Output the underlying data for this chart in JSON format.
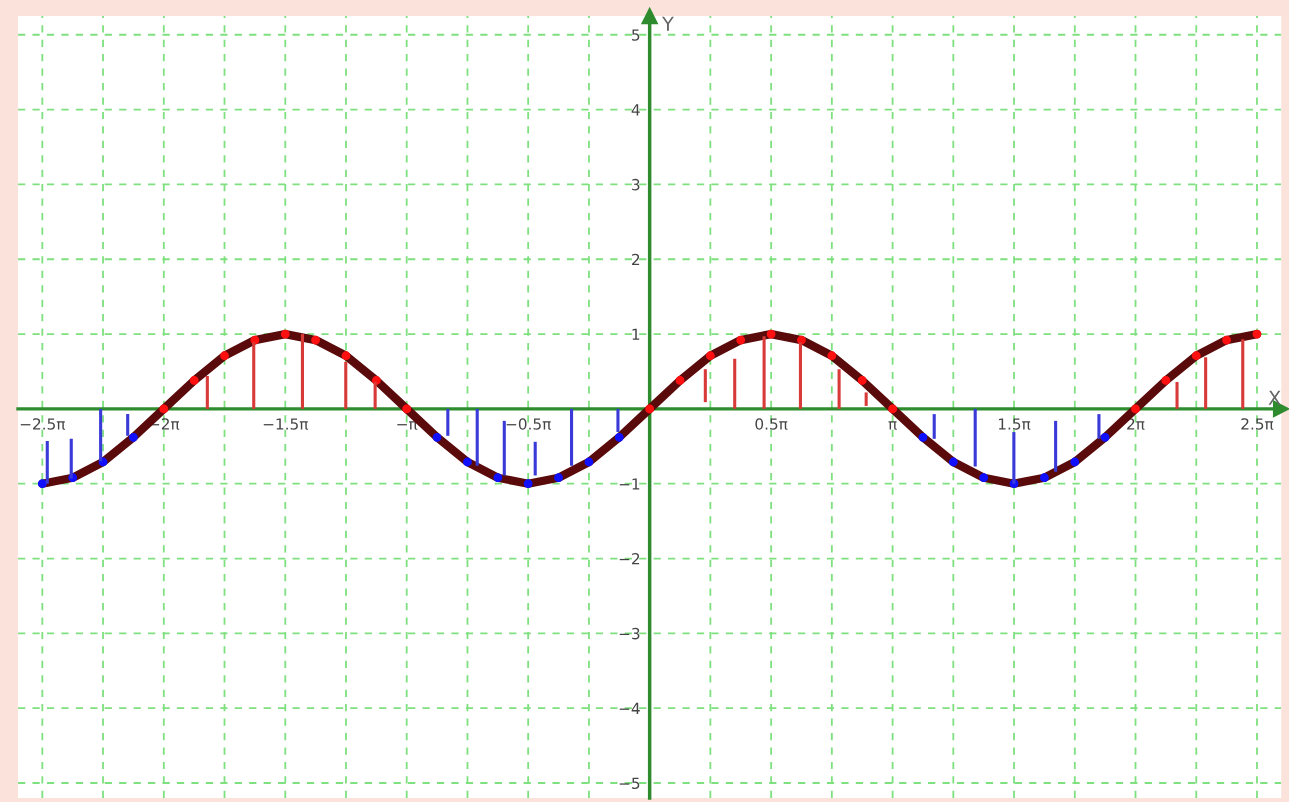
{
  "chart_data": {
    "type": "line",
    "xlabel": "X",
    "ylabel": "Y",
    "xlim": [
      -8.168,
      8.168
    ],
    "ylim": [
      -5.2,
      5.25
    ],
    "xticks": [
      {
        "value": -7.854,
        "label": "−2.5π"
      },
      {
        "value": -7.069,
        "label": null
      },
      {
        "value": -6.283,
        "label": "−2π"
      },
      {
        "value": -5.498,
        "label": null
      },
      {
        "value": -4.712,
        "label": "−1.5π"
      },
      {
        "value": -3.927,
        "label": null
      },
      {
        "value": -3.142,
        "label": "−π"
      },
      {
        "value": -2.356,
        "label": null
      },
      {
        "value": -1.571,
        "label": "−0.5π"
      },
      {
        "value": -0.785,
        "label": null
      },
      {
        "value": 0.785,
        "label": null
      },
      {
        "value": 1.571,
        "label": "0.5π"
      },
      {
        "value": 2.356,
        "label": null
      },
      {
        "value": 3.142,
        "label": "π"
      },
      {
        "value": 3.927,
        "label": null
      },
      {
        "value": 4.712,
        "label": "1.5π"
      },
      {
        "value": 5.498,
        "label": null
      },
      {
        "value": 6.283,
        "label": "2π"
      },
      {
        "value": 7.069,
        "label": null
      },
      {
        "value": 7.854,
        "label": "2.5π"
      }
    ],
    "yticks": [
      {
        "value": -5,
        "label": "−5"
      },
      {
        "value": -4,
        "label": "−4"
      },
      {
        "value": -3,
        "label": "−3"
      },
      {
        "value": -2,
        "label": "−2"
      },
      {
        "value": -1,
        "label": "−1"
      },
      {
        "value": 0,
        "label": null
      },
      1,
      2,
      3,
      4,
      5
    ],
    "grid": true,
    "series": [
      {
        "type": "bar",
        "x": [
          -7.79,
          -7.48,
          -7.1,
          -6.75,
          -5.72,
          -5.12,
          -4.49,
          -3.93,
          -3.55,
          -2.61,
          -2.23,
          -1.88,
          -1.48,
          -1.01,
          -0.41,
          0.72,
          1.1,
          1.48,
          1.95,
          2.45,
          2.8,
          3.68,
          4.21,
          4.71,
          5.25,
          5.81,
          6.82,
          7.19,
          7.67
        ],
        "base": [
          -0.43,
          -0.4,
          0,
          -0.07,
          0,
          0,
          0,
          0,
          0,
          0,
          0,
          -0.16,
          -0.44,
          0,
          0,
          0.09,
          0,
          0,
          0,
          0,
          0.04,
          -0.07,
          0,
          -0.31,
          -0.16,
          -0.07,
          0,
          0,
          0
        ],
        "values": [
          -0.57,
          -0.53,
          -0.7,
          -0.29,
          0.44,
          0.89,
          1.0,
          0.63,
          0.36,
          -0.36,
          -0.76,
          -0.73,
          -0.45,
          -0.76,
          -0.31,
          0.44,
          0.67,
          0.97,
          0.89,
          0.53,
          0.18,
          -0.33,
          -0.77,
          -0.69,
          -0.68,
          -0.33,
          0.36,
          0.69,
          0.93
        ],
        "colors": [
          "#3a3ad8",
          "#3a3ad8",
          "#3a3ad8",
          "#3a3ad8",
          "#d83a3a",
          "#d83a3a",
          "#d83a3a",
          "#d83a3a",
          "#d83a3a",
          "#3a3ad8",
          "#3a3ad8",
          "#3a3ad8",
          "#3a3ad8",
          "#3a3ad8",
          "#3a3ad8",
          "#d83a3a",
          "#d83a3a",
          "#d83a3a",
          "#d83a3a",
          "#d83a3a",
          "#d83a3a",
          "#3a3ad8",
          "#3a3ad8",
          "#3a3ad8",
          "#3a3ad8",
          "#3a3ad8",
          "#d83a3a",
          "#d83a3a",
          "#d83a3a"
        ]
      },
      {
        "type": "line",
        "color": "#5a0a0a",
        "marker": "none",
        "line_style": "solid",
        "x": [
          -7.854,
          -7.461,
          -7.069,
          -6.676,
          -6.283,
          -5.89,
          -5.498,
          -5.105,
          -4.712,
          -4.32,
          -3.927,
          -3.534,
          -3.142,
          -2.749,
          -2.356,
          -1.963,
          -1.571,
          -1.178,
          -0.785,
          -0.393,
          0,
          0.393,
          0.785,
          1.178,
          1.571,
          1.963,
          2.356,
          2.749,
          3.142,
          3.534,
          3.927,
          4.32,
          4.712,
          5.105,
          5.498,
          5.89,
          6.283,
          6.676,
          7.069,
          7.461,
          7.854
        ],
        "values": [
          -1,
          -0.92,
          -0.71,
          -0.38,
          0,
          0.38,
          0.71,
          0.92,
          1,
          0.92,
          0.71,
          0.38,
          0,
          -0.38,
          -0.71,
          -0.92,
          -1,
          -0.92,
          -0.71,
          -0.38,
          0,
          0.38,
          0.71,
          0.92,
          1,
          0.92,
          0.71,
          0.38,
          0,
          -0.38,
          -0.71,
          -0.92,
          -1,
          -0.92,
          -0.71,
          -0.38,
          0,
          0.38,
          0.71,
          0.92,
          1
        ]
      },
      {
        "type": "scatter",
        "color": "#ff1010",
        "marker": "circle",
        "x": [
          -6.283,
          -5.89,
          -5.498,
          -5.105,
          -4.712,
          -4.32,
          -3.927,
          -3.534,
          -3.142,
          0,
          0.393,
          0.785,
          1.178,
          1.571,
          1.963,
          2.356,
          2.749,
          3.142,
          6.283,
          6.676,
          7.069,
          7.461,
          7.854
        ],
        "values": [
          0,
          0.38,
          0.71,
          0.92,
          1,
          0.92,
          0.71,
          0.38,
          0,
          0,
          0.38,
          0.71,
          0.92,
          1,
          0.92,
          0.71,
          0.38,
          0,
          0,
          0.38,
          0.71,
          0.92,
          1
        ]
      },
      {
        "type": "scatter",
        "color": "#1010ff",
        "marker": "circle",
        "x": [
          -7.854,
          -7.461,
          -7.069,
          -6.676,
          -2.749,
          -2.356,
          -1.963,
          -1.571,
          -1.178,
          -0.785,
          -0.393,
          3.534,
          3.927,
          4.32,
          4.712,
          5.105,
          5.498,
          5.89
        ],
        "values": [
          -1,
          -0.92,
          -0.71,
          -0.38,
          -0.38,
          -0.71,
          -0.92,
          -1,
          -0.92,
          -0.71,
          -0.38,
          -0.38,
          -0.71,
          -0.92,
          -1,
          -0.92,
          -0.71,
          -0.38
        ]
      }
    ]
  }
}
